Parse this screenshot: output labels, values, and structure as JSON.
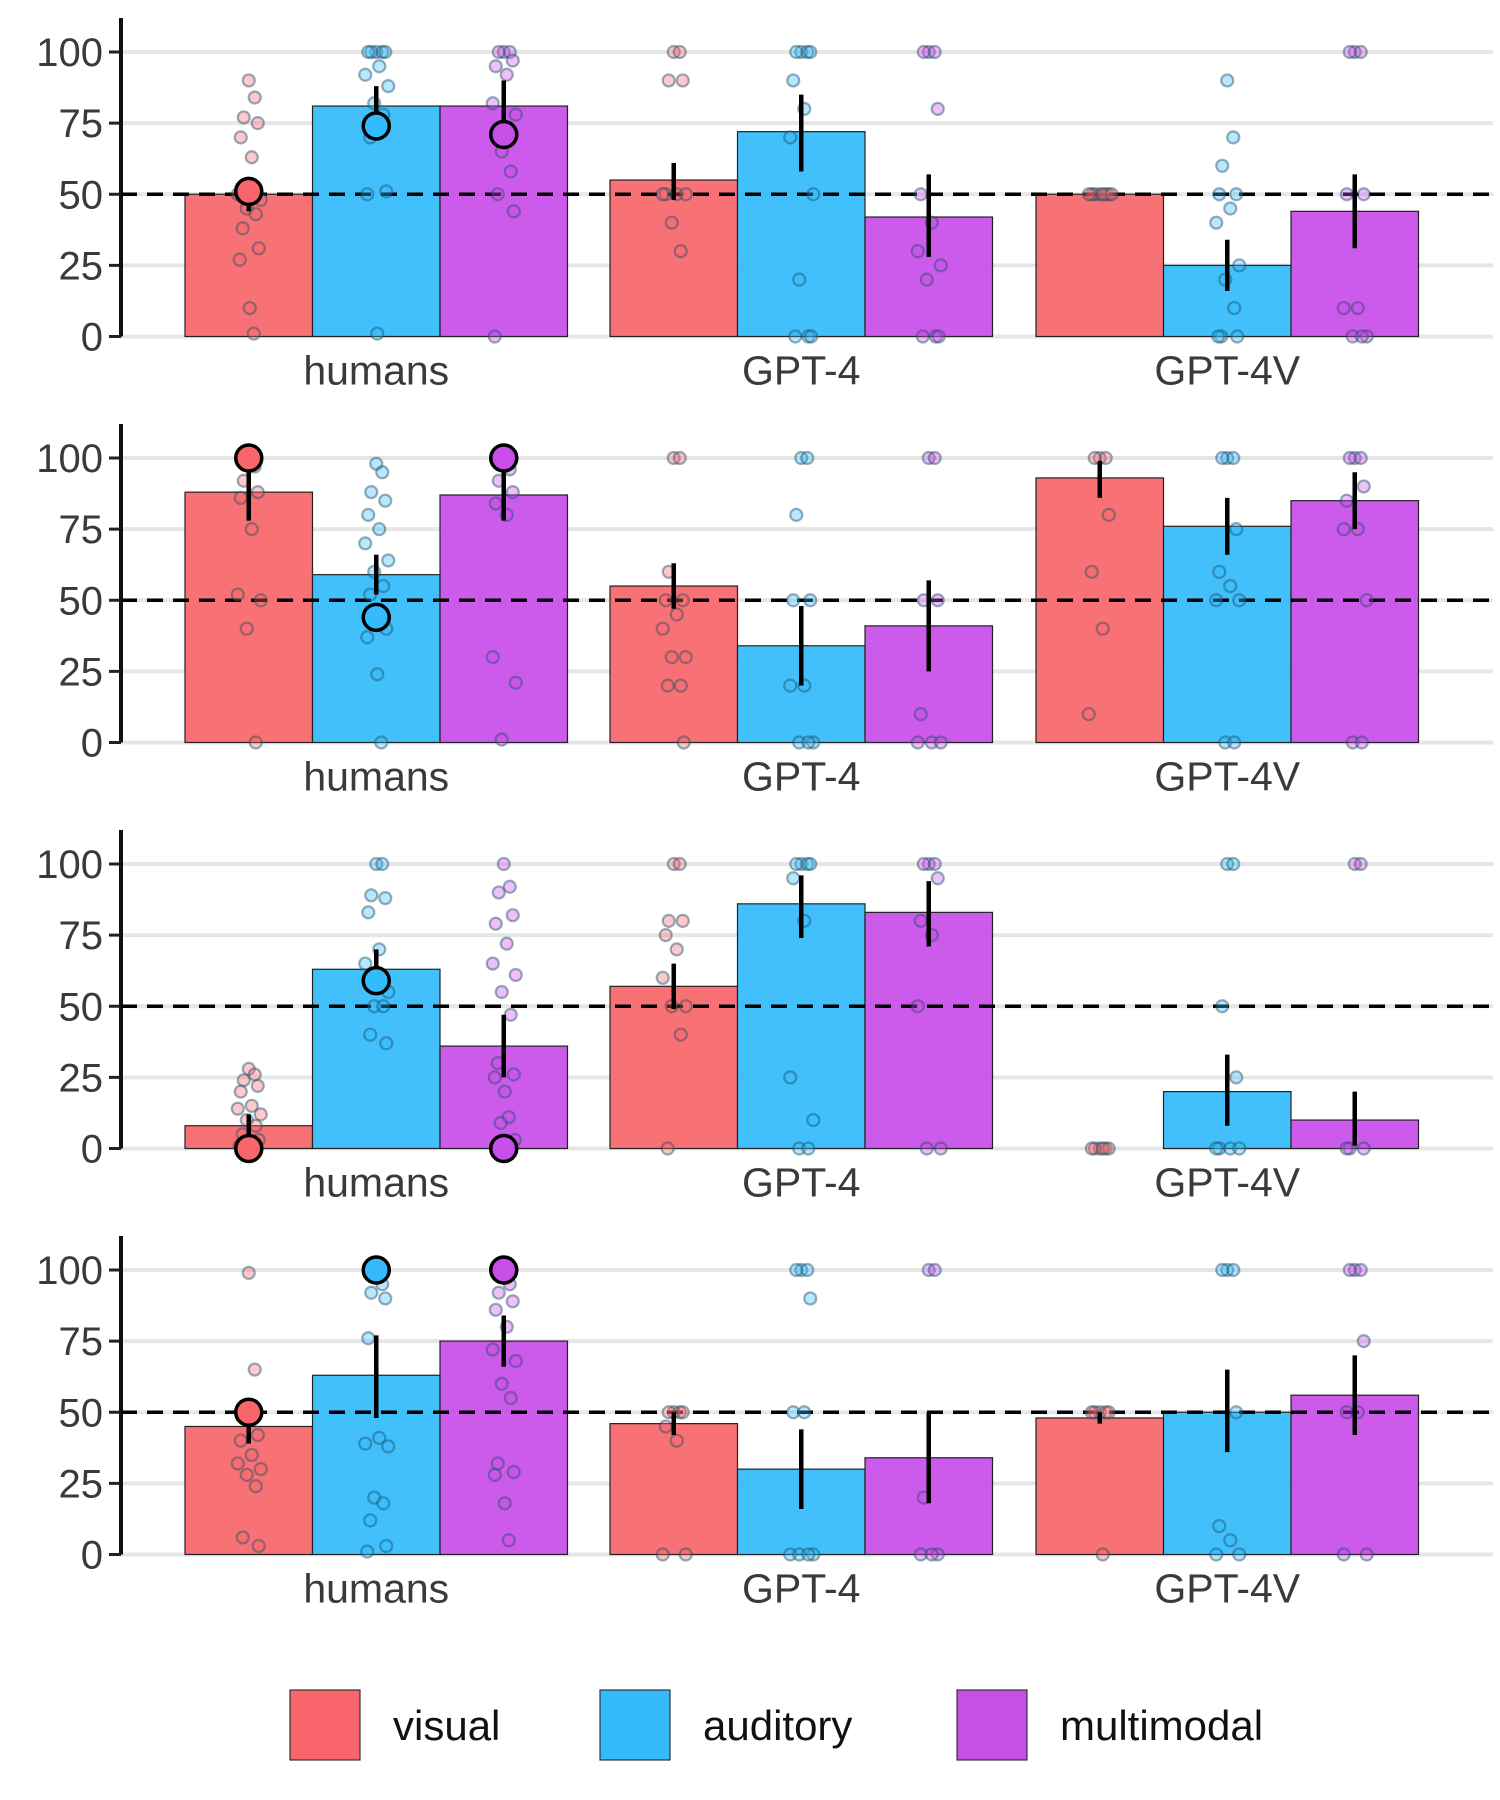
{
  "colors": {
    "visual": "#f8666b",
    "auditory": "#33bbfb",
    "multimodal": "#c84ee8",
    "reference_line": "#000000",
    "grid": "#e6e6e6"
  },
  "legend": [
    {
      "key": "visual",
      "label": "visual"
    },
    {
      "key": "auditory",
      "label": "auditory"
    },
    {
      "key": "multimodal",
      "label": "multimodal"
    }
  ],
  "chart_data": [
    {
      "type": "bar",
      "categories": [
        "humans",
        "GPT-4",
        "GPT-4V"
      ],
      "ylim": [
        0,
        100
      ],
      "yticks": [
        "0",
        "25",
        "50",
        "75",
        "100"
      ],
      "reference_line": 50,
      "series": [
        {
          "name": "visual",
          "values": [
            50,
            55,
            50
          ],
          "error": [
            [
              44,
              56
            ],
            [
              48,
              61
            ],
            [
              50,
              50
            ]
          ],
          "highlight": [
            51,
            null,
            null
          ],
          "points": [
            [
              90,
              84,
              77,
              75,
              70,
              63,
              50,
              48,
              45,
              43,
              38,
              31,
              27,
              10,
              1
            ],
            [
              100,
              100,
              90,
              90,
              50,
              50,
              50,
              50,
              40,
              30
            ],
            [
              50,
              50,
              50,
              50,
              50,
              50,
              50,
              50
            ]
          ]
        },
        {
          "name": "auditory",
          "values": [
            81,
            72,
            25
          ],
          "error": [
            [
              74,
              88
            ],
            [
              58,
              85
            ],
            [
              16,
              34
            ]
          ],
          "highlight": [
            74,
            null,
            null
          ],
          "points": [
            [
              100,
              100,
              100,
              100,
              100,
              95,
              92,
              88,
              82,
              78,
              70,
              51,
              50,
              1
            ],
            [
              100,
              100,
              100,
              100,
              90,
              80,
              70,
              50,
              20,
              0,
              0,
              0
            ],
            [
              90,
              70,
              60,
              50,
              50,
              45,
              40,
              25,
              20,
              10,
              0,
              0,
              0
            ]
          ]
        },
        {
          "name": "multimodal",
          "values": [
            81,
            42,
            44
          ],
          "error": [
            [
              72,
              90
            ],
            [
              28,
              57
            ],
            [
              31,
              57
            ]
          ],
          "highlight": [
            71,
            null,
            null
          ],
          "points": [
            [
              100,
              100,
              100,
              97,
              95,
              92,
              82,
              78,
              65,
              58,
              50,
              44,
              0
            ],
            [
              100,
              100,
              100,
              80,
              50,
              40,
              30,
              25,
              20,
              0,
              0,
              0
            ],
            [
              100,
              100,
              100,
              50,
              50,
              10,
              10,
              0,
              0,
              0
            ]
          ]
        }
      ]
    },
    {
      "type": "bar",
      "categories": [
        "humans",
        "GPT-4",
        "GPT-4V"
      ],
      "ylim": [
        0,
        100
      ],
      "yticks": [
        "0",
        "25",
        "50",
        "75",
        "100"
      ],
      "reference_line": 50,
      "series": [
        {
          "name": "visual",
          "values": [
            88,
            55,
            93
          ],
          "error": [
            [
              78,
              96
            ],
            [
              47,
              63
            ],
            [
              86,
              99
            ]
          ],
          "highlight": [
            100,
            null,
            null
          ],
          "points": [
            [
              100,
              97,
              92,
              88,
              86,
              75,
              52,
              50,
              40,
              0
            ],
            [
              100,
              100,
              60,
              50,
              50,
              45,
              40,
              30,
              30,
              20,
              20,
              0
            ],
            [
              100,
              100,
              100,
              80,
              60,
              40,
              10
            ]
          ]
        },
        {
          "name": "auditory",
          "values": [
            59,
            34,
            76
          ],
          "error": [
            [
              52,
              66
            ],
            [
              20,
              48
            ],
            [
              66,
              86
            ]
          ],
          "highlight": [
            44,
            null,
            null
          ],
          "points": [
            [
              98,
              95,
              88,
              85,
              80,
              75,
              70,
              64,
              60,
              55,
              52,
              40,
              37,
              24,
              0
            ],
            [
              100,
              100,
              80,
              50,
              50,
              20,
              20,
              0,
              0,
              0
            ],
            [
              100,
              100,
              100,
              75,
              60,
              55,
              50,
              50,
              0,
              0
            ]
          ]
        },
        {
          "name": "multimodal",
          "values": [
            87,
            41,
            85
          ],
          "error": [
            [
              78,
              96
            ],
            [
              25,
              57
            ],
            [
              75,
              95
            ]
          ],
          "highlight": [
            100,
            null,
            null
          ],
          "points": [
            [
              100,
              96,
              92,
              88,
              84,
              80,
              30,
              21,
              1
            ],
            [
              100,
              100,
              50,
              50,
              10,
              0,
              0,
              0
            ],
            [
              100,
              100,
              100,
              90,
              85,
              75,
              75,
              50,
              0,
              0
            ]
          ]
        }
      ]
    },
    {
      "type": "bar",
      "categories": [
        "humans",
        "GPT-4",
        "GPT-4V"
      ],
      "ylim": [
        0,
        100
      ],
      "yticks": [
        "0",
        "25",
        "50",
        "75",
        "100"
      ],
      "reference_line": 50,
      "series": [
        {
          "name": "visual",
          "values": [
            8,
            57,
            0
          ],
          "error": [
            [
              4,
              12
            ],
            [
              49,
              65
            ],
            [
              0,
              0
            ]
          ],
          "highlight": [
            0,
            null,
            null
          ],
          "points": [
            [
              28,
              26,
              24,
              22,
              20,
              15,
              14,
              12,
              10,
              8,
              5,
              3,
              1
            ],
            [
              100,
              100,
              80,
              80,
              75,
              70,
              60,
              50,
              50,
              40,
              0
            ],
            [
              0,
              0,
              0,
              0,
              0,
              0
            ]
          ]
        },
        {
          "name": "auditory",
          "values": [
            63,
            86,
            20
          ],
          "error": [
            [
              56,
              70
            ],
            [
              74,
              96
            ],
            [
              8,
              33
            ]
          ],
          "highlight": [
            59,
            null,
            null
          ],
          "points": [
            [
              100,
              100,
              89,
              88,
              83,
              70,
              65,
              55,
              50,
              50,
              40,
              37
            ],
            [
              100,
              100,
              100,
              100,
              95,
              80,
              25,
              10,
              0,
              0
            ],
            [
              100,
              100,
              50,
              25,
              0,
              0,
              0,
              0
            ]
          ]
        },
        {
          "name": "multimodal",
          "values": [
            36,
            83,
            10
          ],
          "error": [
            [
              25,
              47
            ],
            [
              71,
              94
            ],
            [
              1,
              20
            ]
          ],
          "highlight": [
            0,
            null,
            null
          ],
          "points": [
            [
              100,
              92,
              90,
              82,
              79,
              72,
              65,
              61,
              55,
              47,
              30,
              26,
              25,
              20,
              11,
              9,
              3
            ],
            [
              100,
              100,
              100,
              95,
              80,
              75,
              50,
              0,
              0
            ],
            [
              100,
              100,
              0,
              0,
              0
            ]
          ]
        }
      ]
    },
    {
      "type": "bar",
      "categories": [
        "humans",
        "GPT-4",
        "GPT-4V"
      ],
      "ylim": [
        0,
        100
      ],
      "yticks": [
        "0",
        "25",
        "50",
        "75",
        "100"
      ],
      "reference_line": 50,
      "series": [
        {
          "name": "visual",
          "values": [
            45,
            46,
            48
          ],
          "error": [
            [
              39,
              51
            ],
            [
              42,
              50
            ],
            [
              46,
              50
            ]
          ],
          "highlight": [
            50,
            null,
            null
          ],
          "points": [
            [
              99,
              65,
              50,
              42,
              40,
              35,
              32,
              30,
              28,
              24,
              6,
              3
            ],
            [
              50,
              50,
              50,
              50,
              45,
              40,
              0,
              0
            ],
            [
              50,
              50,
              50,
              50,
              50,
              0
            ]
          ]
        },
        {
          "name": "auditory",
          "values": [
            63,
            30,
            50
          ],
          "error": [
            [
              48,
              77
            ],
            [
              16,
              44
            ],
            [
              36,
              65
            ]
          ],
          "highlight": [
            100,
            null,
            null
          ],
          "points": [
            [
              100,
              95,
              92,
              90,
              76,
              41,
              39,
              38,
              20,
              18,
              12,
              3,
              1
            ],
            [
              100,
              100,
              100,
              90,
              50,
              50,
              0,
              0,
              0,
              0
            ],
            [
              100,
              100,
              100,
              50,
              10,
              5,
              0,
              0
            ]
          ]
        },
        {
          "name": "multimodal",
          "values": [
            75,
            34,
            56
          ],
          "error": [
            [
              66,
              84
            ],
            [
              18,
              50
            ],
            [
              42,
              70
            ]
          ],
          "highlight": [
            100,
            null,
            null
          ],
          "points": [
            [
              100,
              95,
              92,
              89,
              86,
              80,
              72,
              68,
              60,
              55,
              32,
              29,
              28,
              18,
              5
            ],
            [
              100,
              100,
              20,
              0,
              0,
              0
            ],
            [
              100,
              100,
              100,
              75,
              50,
              50,
              0,
              0
            ]
          ]
        }
      ]
    }
  ]
}
